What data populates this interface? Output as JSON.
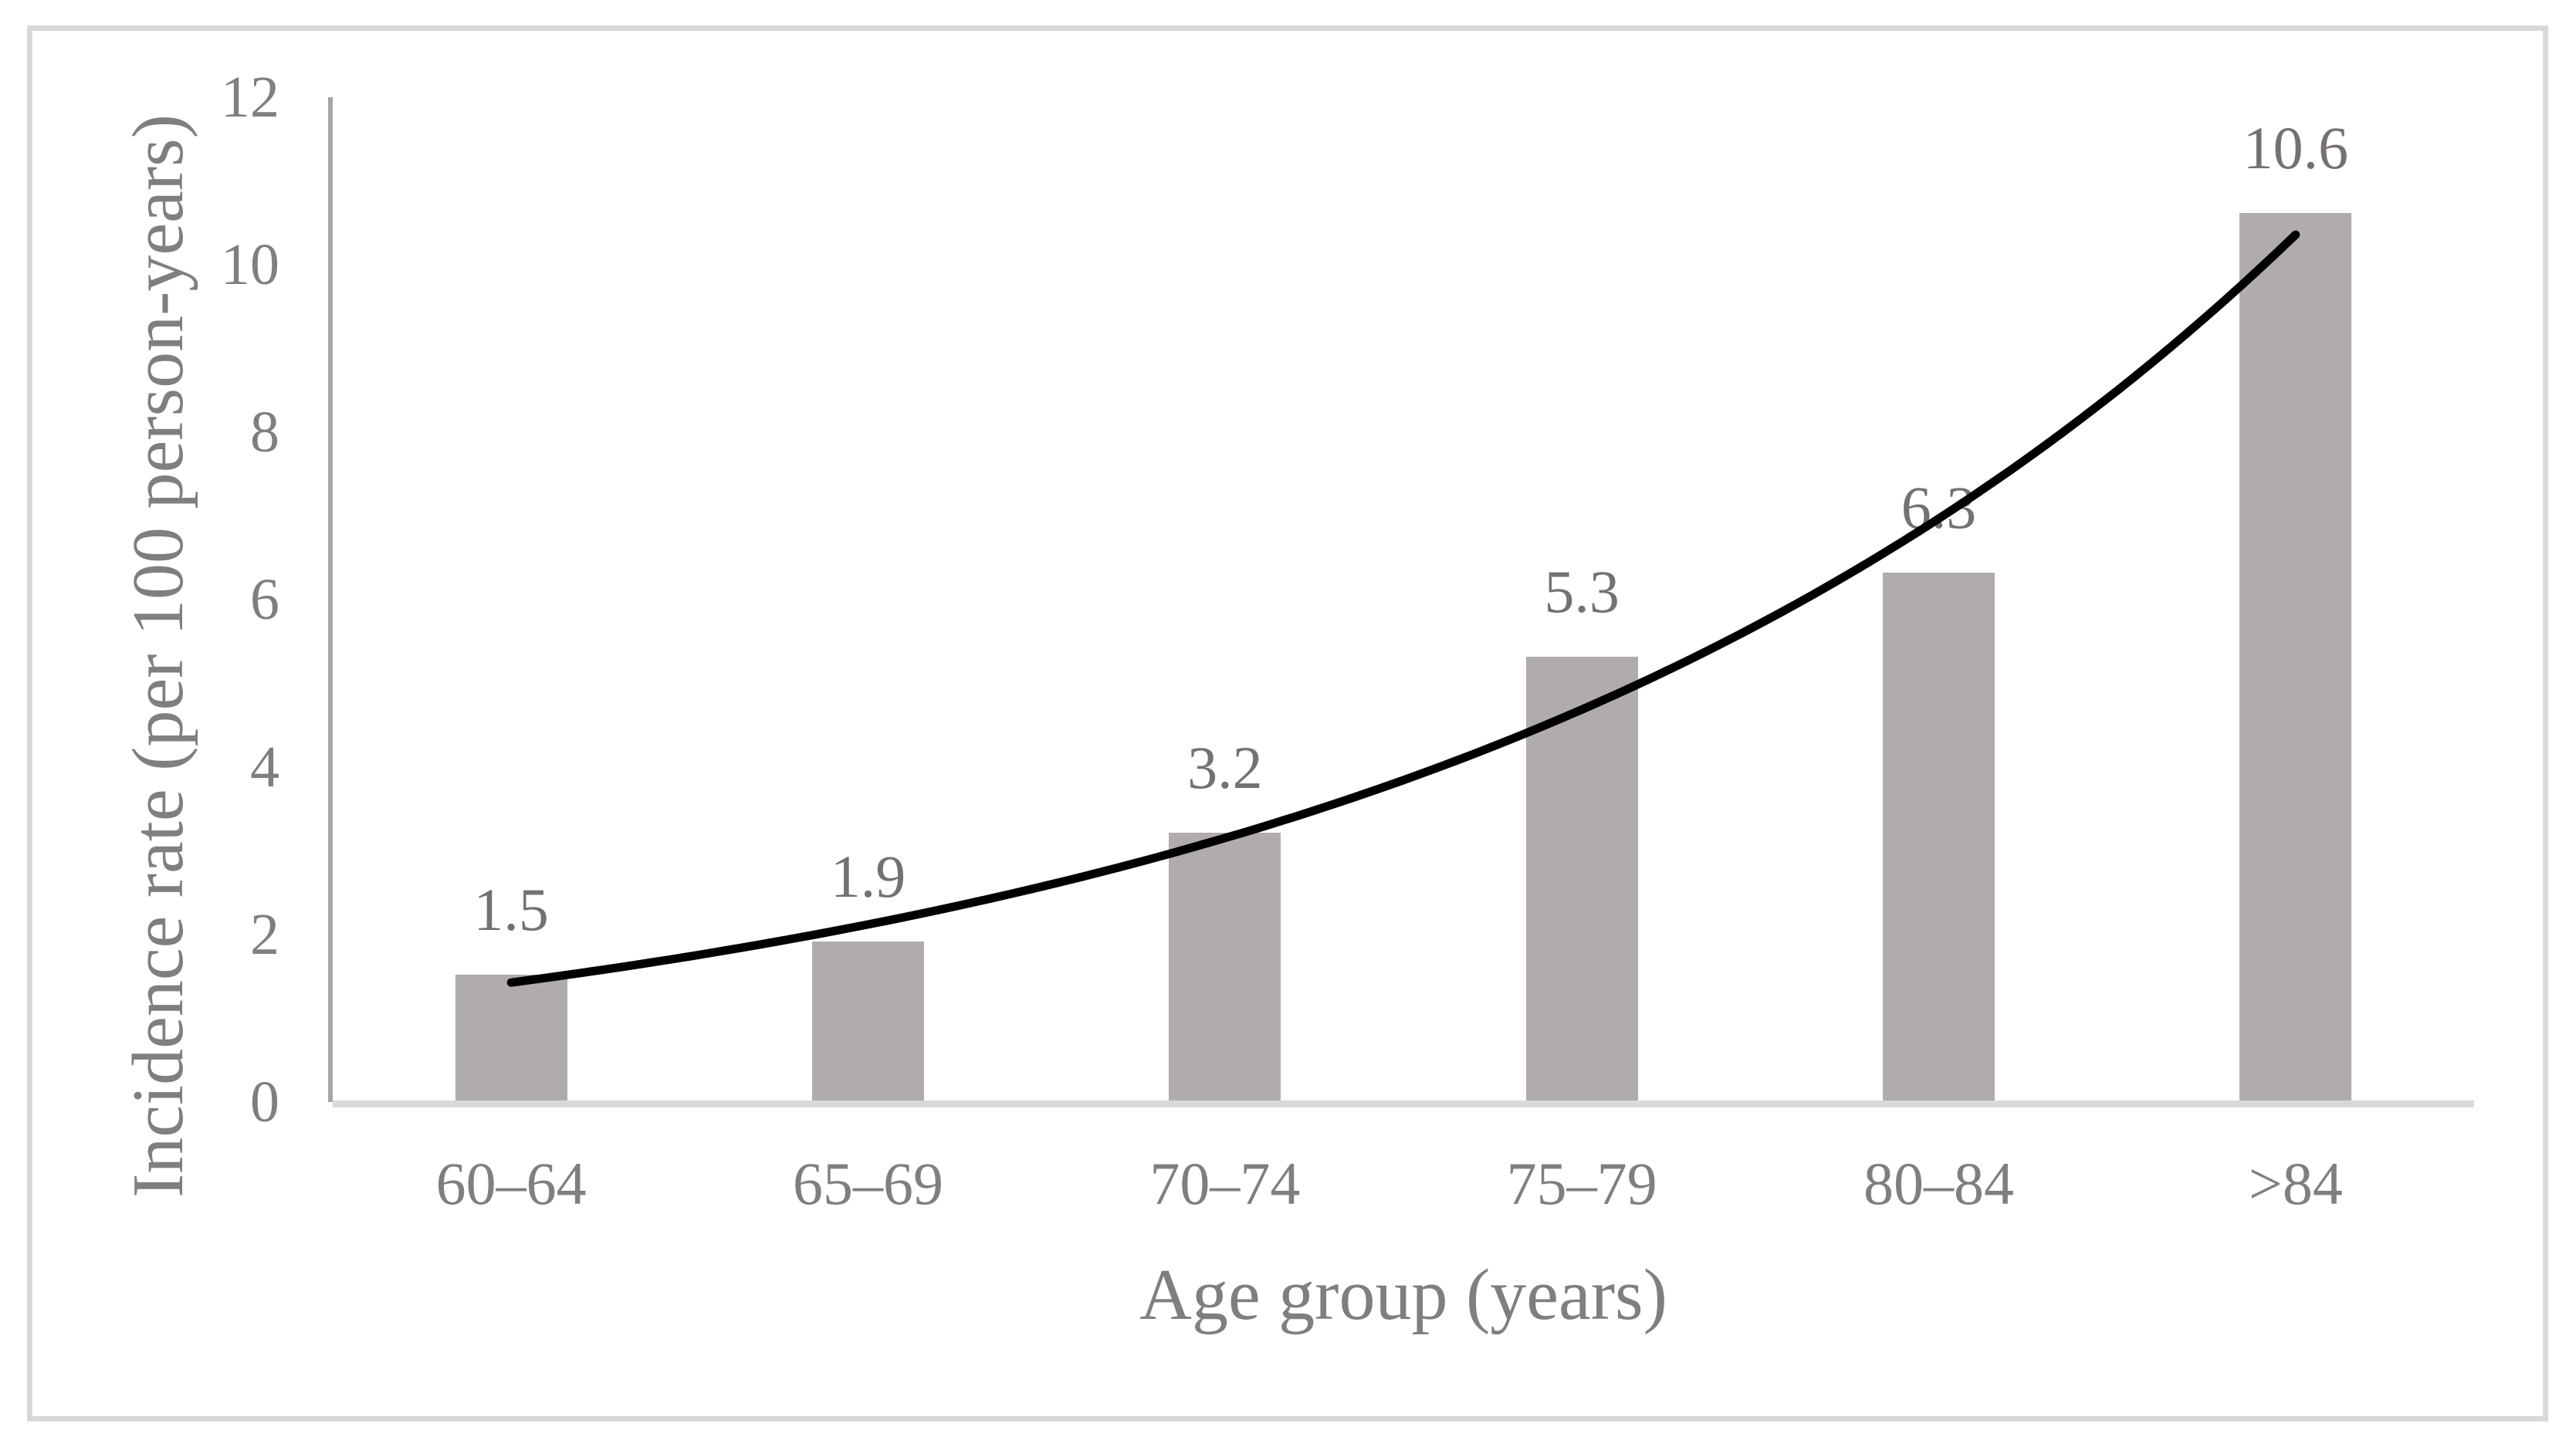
{
  "chart_data": {
    "type": "bar",
    "title": "",
    "categories": [
      "60–64",
      "65–69",
      "70–74",
      "75–79",
      "80–84",
      ">84"
    ],
    "values": [
      1.5,
      1.9,
      3.2,
      5.3,
      6.3,
      10.6
    ],
    "value_labels": [
      "1.5",
      "1.9",
      "3.2",
      "5.3",
      "6.3",
      "10.6"
    ],
    "xlabel": "Age group (years)",
    "ylabel": "Incidence rate (per 100 person-years)",
    "ylim": [
      0,
      12
    ],
    "y_ticks": [
      "0",
      "2",
      "4",
      "6",
      "8",
      "10",
      "12"
    ],
    "grid": false,
    "legend": "none",
    "data_labels_position": "above-bar-center",
    "trendline": {
      "type": "exponential",
      "span": "first-bar-center-to-last-bar-center"
    },
    "colors": {
      "background": "#FFFFFF",
      "frame_border": "#D9D9D9",
      "bar_fill": "#B0ACAB",
      "axis_text": "#7F7F7F",
      "data_label_text": "#767171",
      "x_axis_line": "#D9D9D9",
      "y_axis_line": "#A6A6A6",
      "trendline": "#000000"
    }
  }
}
